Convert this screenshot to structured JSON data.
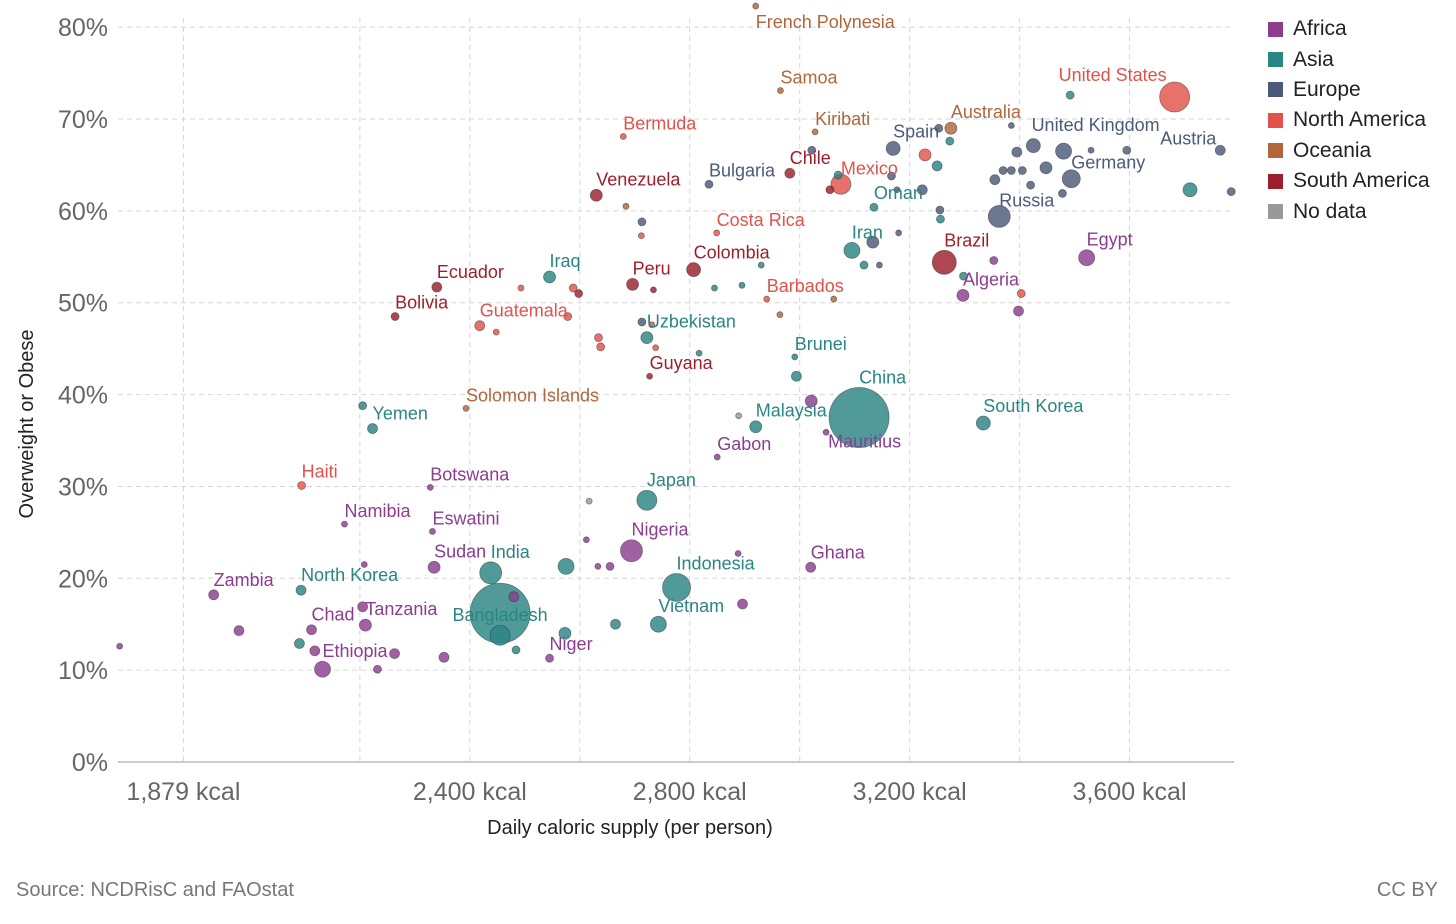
{
  "source": "Source: NCDRisC and FAOstat",
  "license": "CC BY",
  "regions": [
    {
      "key": "africa",
      "label": "Africa",
      "color": "#8c3d8f"
    },
    {
      "key": "asia",
      "label": "Asia",
      "color": "#2a8583"
    },
    {
      "key": "europe",
      "label": "Europe",
      "color": "#4c5a7a"
    },
    {
      "key": "namerica",
      "label": "North America",
      "color": "#e2524b"
    },
    {
      "key": "oceania",
      "label": "Oceania",
      "color": "#b2663a"
    },
    {
      "key": "samerica",
      "label": "South America",
      "color": "#9c1f2b"
    },
    {
      "key": "nodata",
      "label": "No data",
      "color": "#999999"
    }
  ],
  "chart_data": {
    "type": "scatter",
    "xlabel": "Daily caloric supply (per person)",
    "ylabel": "Overweight or Obese",
    "xlim": [
      1760,
      3790
    ],
    "ylim": [
      0,
      81
    ],
    "xticks": [
      1879,
      2400,
      2800,
      3200,
      3600
    ],
    "xtick_labels": [
      "1,879 kcal",
      "2,400 kcal",
      "2,800 kcal",
      "3,200 kcal",
      "3,600 kcal"
    ],
    "yticks": [
      0,
      10,
      20,
      30,
      40,
      50,
      60,
      70,
      80
    ],
    "ytick_labels": [
      "0%",
      "10%",
      "20%",
      "30%",
      "40%",
      "50%",
      "60%",
      "70%",
      "80%"
    ],
    "xgrid": [
      1879,
      2200,
      2400,
      2600,
      2800,
      3000,
      3200,
      3400,
      3600
    ],
    "grid": true,
    "legend_position": "top-right",
    "labeled_points": [
      {
        "label": "French Polynesia",
        "region": "oceania",
        "x": 2920,
        "y": 82.3,
        "r": 3
      },
      {
        "label": "Samoa",
        "region": "oceania",
        "x": 2965,
        "y": 73.1,
        "r": 3
      },
      {
        "label": "United States",
        "region": "namerica",
        "x": 3682,
        "y": 72.4,
        "r": 15
      },
      {
        "label": "Australia",
        "region": "oceania",
        "x": 3275,
        "y": 69.0,
        "r": 6
      },
      {
        "label": "Kiribati",
        "region": "oceania",
        "x": 3028,
        "y": 68.6,
        "r": 3
      },
      {
        "label": "Bermuda",
        "region": "namerica",
        "x": 2679,
        "y": 68.1,
        "r": 3
      },
      {
        "label": "United Kingdom",
        "region": "europe",
        "x": 3480,
        "y": 66.5,
        "r": 8
      },
      {
        "label": "Spain",
        "region": "europe",
        "x": 3170,
        "y": 66.8,
        "r": 7
      },
      {
        "label": "Chile",
        "region": "samerica",
        "x": 2982,
        "y": 64.1,
        "r": 5
      },
      {
        "label": "Mexico",
        "region": "namerica",
        "x": 3075,
        "y": 62.9,
        "r": 10
      },
      {
        "label": "Germany",
        "region": "europe",
        "x": 3494,
        "y": 63.5,
        "r": 9
      },
      {
        "label": "Bulgaria",
        "region": "europe",
        "x": 2835,
        "y": 62.9,
        "r": 4
      },
      {
        "label": "Venezuela",
        "region": "samerica",
        "x": 2630,
        "y": 61.7,
        "r": 6
      },
      {
        "label": "Austria",
        "region": "europe",
        "x": 3765,
        "y": 66.6,
        "r": 5
      },
      {
        "label": "Russia",
        "region": "europe",
        "x": 3363,
        "y": 59.4,
        "r": 11
      },
      {
        "label": "Oman",
        "region": "asia",
        "x": 3135,
        "y": 60.4,
        "r": 4
      },
      {
        "label": "Costa Rica",
        "region": "namerica",
        "x": 2849,
        "y": 57.6,
        "r": 3
      },
      {
        "label": "Iran",
        "region": "asia",
        "x": 3095,
        "y": 55.7,
        "r": 8
      },
      {
        "label": "Brazil",
        "region": "samerica",
        "x": 3263,
        "y": 54.4,
        "r": 12
      },
      {
        "label": "Egypt",
        "region": "africa",
        "x": 3522,
        "y": 54.9,
        "r": 8
      },
      {
        "label": "Colombia",
        "region": "samerica",
        "x": 2807,
        "y": 53.6,
        "r": 7
      },
      {
        "label": "Iraq",
        "region": "asia",
        "x": 2545,
        "y": 52.8,
        "r": 6
      },
      {
        "label": "Peru",
        "region": "samerica",
        "x": 2696,
        "y": 52.0,
        "r": 6
      },
      {
        "label": "Ecuador",
        "region": "samerica",
        "x": 2340,
        "y": 51.7,
        "r": 5
      },
      {
        "label": "Algeria",
        "region": "africa",
        "x": 3297,
        "y": 50.8,
        "r": 6
      },
      {
        "label": "Barbados",
        "region": "namerica",
        "x": 2940,
        "y": 50.4,
        "r": 3
      },
      {
        "label": "Bolivia",
        "region": "samerica",
        "x": 2264,
        "y": 48.5,
        "r": 4
      },
      {
        "label": "Guatemala",
        "region": "namerica",
        "x": 2418,
        "y": 47.5,
        "r": 5
      },
      {
        "label": "Uzbekistan",
        "region": "asia",
        "x": 2722,
        "y": 46.2,
        "r": 6
      },
      {
        "label": "Brunei",
        "region": "asia",
        "x": 2991,
        "y": 44.1,
        "r": 3
      },
      {
        "label": "Guyana",
        "region": "samerica",
        "x": 2727,
        "y": 42.0,
        "r": 3
      },
      {
        "label": "China",
        "region": "asia",
        "x": 3108,
        "y": 37.5,
        "r": 30
      },
      {
        "label": "Mauritius",
        "region": "africa",
        "x": 3048,
        "y": 35.9,
        "r": 3
      },
      {
        "label": "Solomon Islands",
        "region": "oceania",
        "x": 2393,
        "y": 38.5,
        "r": 3
      },
      {
        "label": "Yemen",
        "region": "asia",
        "x": 2223,
        "y": 36.3,
        "r": 5
      },
      {
        "label": "Malaysia",
        "region": "asia",
        "x": 2920,
        "y": 36.5,
        "r": 6
      },
      {
        "label": "South Korea",
        "region": "asia",
        "x": 3334,
        "y": 36.9,
        "r": 7
      },
      {
        "label": "Gabon",
        "region": "africa",
        "x": 2850,
        "y": 33.2,
        "r": 3
      },
      {
        "label": "Haiti",
        "region": "namerica",
        "x": 2094,
        "y": 30.1,
        "r": 4
      },
      {
        "label": "Botswana",
        "region": "africa",
        "x": 2328,
        "y": 29.9,
        "r": 3
      },
      {
        "label": "Japan",
        "region": "asia",
        "x": 2722,
        "y": 28.5,
        "r": 10
      },
      {
        "label": "Namibia",
        "region": "africa",
        "x": 2172,
        "y": 25.9,
        "r": 3
      },
      {
        "label": "Eswatini",
        "region": "africa",
        "x": 2332,
        "y": 25.1,
        "r": 3
      },
      {
        "label": "Nigeria",
        "region": "africa",
        "x": 2694,
        "y": 23.0,
        "r": 11
      },
      {
        "label": "Sudan",
        "region": "africa",
        "x": 2335,
        "y": 21.2,
        "r": 6
      },
      {
        "label": "Ghana",
        "region": "africa",
        "x": 3020,
        "y": 21.2,
        "r": 5
      },
      {
        "label": "Indonesia",
        "region": "asia",
        "x": 2776,
        "y": 19.0,
        "r": 14
      },
      {
        "label": "India",
        "region": "asia",
        "x": 2438,
        "y": 20.6,
        "r": 11
      },
      {
        "label": "Zambia",
        "region": "africa",
        "x": 1934,
        "y": 18.2,
        "r": 5
      },
      {
        "label": "North Korea",
        "region": "asia",
        "x": 2093,
        "y": 18.7,
        "r": 5
      },
      {
        "label": "Bangladesh",
        "region": "asia",
        "x": 2455,
        "y": 16.2,
        "r": 30
      },
      {
        "label": "Tanzania",
        "region": "africa",
        "x": 2210,
        "y": 14.9,
        "r": 6
      },
      {
        "label": "Vietnam",
        "region": "asia",
        "x": 2743,
        "y": 15.0,
        "r": 8
      },
      {
        "label": "Chad",
        "region": "africa",
        "x": 2112,
        "y": 14.4,
        "r": 5
      },
      {
        "label": "Niger",
        "region": "africa",
        "x": 2545,
        "y": 11.3,
        "r": 4
      },
      {
        "label": "Ethiopia",
        "region": "africa",
        "x": 2132,
        "y": 10.1,
        "r": 8
      }
    ],
    "unlabeled_points": [
      {
        "region": "africa",
        "x": 1763,
        "y": 12.6,
        "r": 3
      },
      {
        "region": "africa",
        "x": 1980,
        "y": 14.3,
        "r": 5
      },
      {
        "region": "africa",
        "x": 2118,
        "y": 12.1,
        "r": 5
      },
      {
        "region": "africa",
        "x": 2263,
        "y": 11.8,
        "r": 5
      },
      {
        "region": "africa",
        "x": 2353,
        "y": 11.4,
        "r": 5
      },
      {
        "region": "africa",
        "x": 2232,
        "y": 10.1,
        "r": 4
      },
      {
        "region": "africa",
        "x": 2205,
        "y": 16.9,
        "r": 5
      },
      {
        "region": "africa",
        "x": 2208,
        "y": 21.5,
        "r": 3
      },
      {
        "region": "asia",
        "x": 2090,
        "y": 12.9,
        "r": 5
      },
      {
        "region": "asia",
        "x": 2205,
        "y": 38.8,
        "r": 4
      },
      {
        "region": "asia",
        "x": 2575,
        "y": 21.3,
        "r": 8
      },
      {
        "region": "asia",
        "x": 2455,
        "y": 13.8,
        "r": 10
      },
      {
        "region": "asia",
        "x": 2573,
        "y": 14.0,
        "r": 6
      },
      {
        "region": "asia",
        "x": 2484,
        "y": 12.2,
        "r": 4
      },
      {
        "region": "asia",
        "x": 2665,
        "y": 15.0,
        "r": 5
      },
      {
        "region": "africa",
        "x": 2480,
        "y": 18.0,
        "r": 5
      },
      {
        "region": "africa",
        "x": 2655,
        "y": 21.3,
        "r": 4
      },
      {
        "region": "africa",
        "x": 2612,
        "y": 24.2,
        "r": 3
      },
      {
        "region": "africa",
        "x": 2633,
        "y": 21.3,
        "r": 3
      },
      {
        "region": "africa",
        "x": 2888,
        "y": 22.7,
        "r": 3
      },
      {
        "region": "africa",
        "x": 2896,
        "y": 17.2,
        "r": 5
      },
      {
        "region": "africa",
        "x": 3021,
        "y": 39.3,
        "r": 6
      },
      {
        "region": "africa",
        "x": 3398,
        "y": 49.1,
        "r": 5
      },
      {
        "region": "africa",
        "x": 3353,
        "y": 54.6,
        "r": 4
      },
      {
        "region": "nodata",
        "x": 2617,
        "y": 28.4,
        "r": 3
      },
      {
        "region": "nodata",
        "x": 2889,
        "y": 37.7,
        "r": 3
      },
      {
        "region": "asia",
        "x": 2994,
        "y": 42.0,
        "r": 5
      },
      {
        "region": "asia",
        "x": 2817,
        "y": 44.5,
        "r": 3
      },
      {
        "region": "asia",
        "x": 2845,
        "y": 51.6,
        "r": 3
      },
      {
        "region": "asia",
        "x": 2895,
        "y": 51.9,
        "r": 3
      },
      {
        "region": "asia",
        "x": 2930,
        "y": 54.1,
        "r": 3
      },
      {
        "region": "asia",
        "x": 3273,
        "y": 67.6,
        "r": 4
      },
      {
        "region": "asia",
        "x": 3250,
        "y": 64.9,
        "r": 5
      },
      {
        "region": "asia",
        "x": 3256,
        "y": 59.1,
        "r": 4
      },
      {
        "region": "asia",
        "x": 3298,
        "y": 52.9,
        "r": 4
      },
      {
        "region": "asia",
        "x": 3710,
        "y": 62.3,
        "r": 7
      },
      {
        "region": "asia",
        "x": 3492,
        "y": 72.6,
        "r": 4
      },
      {
        "region": "asia",
        "x": 3117,
        "y": 54.1,
        "r": 4
      },
      {
        "region": "asia",
        "x": 3070,
        "y": 63.9,
        "r": 4
      },
      {
        "region": "namerica",
        "x": 3228,
        "y": 66.1,
        "r": 6
      },
      {
        "region": "namerica",
        "x": 3403,
        "y": 51.0,
        "r": 4
      },
      {
        "region": "namerica",
        "x": 2578,
        "y": 48.5,
        "r": 4
      },
      {
        "region": "namerica",
        "x": 2634,
        "y": 46.2,
        "r": 4
      },
      {
        "region": "namerica",
        "x": 2638,
        "y": 45.2,
        "r": 4
      },
      {
        "region": "namerica",
        "x": 2731,
        "y": 47.6,
        "r": 3
      },
      {
        "region": "namerica",
        "x": 2588,
        "y": 51.6,
        "r": 4
      },
      {
        "region": "namerica",
        "x": 2738,
        "y": 45.1,
        "r": 3
      },
      {
        "region": "namerica",
        "x": 2712,
        "y": 57.3,
        "r": 3
      },
      {
        "region": "namerica",
        "x": 2448,
        "y": 46.8,
        "r": 3
      },
      {
        "region": "namerica",
        "x": 2493,
        "y": 51.6,
        "r": 3
      },
      {
        "region": "oceania",
        "x": 2684,
        "y": 60.5,
        "r": 3
      },
      {
        "region": "oceania",
        "x": 2964,
        "y": 48.7,
        "r": 3
      },
      {
        "region": "oceania",
        "x": 3062,
        "y": 50.4,
        "r": 3
      },
      {
        "region": "samerica",
        "x": 2598,
        "y": 51.0,
        "r": 4
      },
      {
        "region": "samerica",
        "x": 2734,
        "y": 51.4,
        "r": 3
      },
      {
        "region": "samerica",
        "x": 3055,
        "y": 62.3,
        "r": 4
      },
      {
        "region": "europe",
        "x": 2713,
        "y": 47.9,
        "r": 4
      },
      {
        "region": "europe",
        "x": 2713,
        "y": 58.8,
        "r": 4
      },
      {
        "region": "europe",
        "x": 3145,
        "y": 54.1,
        "r": 3
      },
      {
        "region": "europe",
        "x": 3133,
        "y": 56.6,
        "r": 6
      },
      {
        "region": "europe",
        "x": 3180,
        "y": 57.6,
        "r": 3
      },
      {
        "region": "europe",
        "x": 3167,
        "y": 63.8,
        "r": 4
      },
      {
        "region": "europe",
        "x": 3177,
        "y": 62.3,
        "r": 3
      },
      {
        "region": "europe",
        "x": 3223,
        "y": 62.3,
        "r": 5
      },
      {
        "region": "europe",
        "x": 3255,
        "y": 60.1,
        "r": 4
      },
      {
        "region": "europe",
        "x": 3253,
        "y": 69.0,
        "r": 4
      },
      {
        "region": "europe",
        "x": 3022,
        "y": 66.6,
        "r": 4
      },
      {
        "region": "europe",
        "x": 3355,
        "y": 63.4,
        "r": 5
      },
      {
        "region": "europe",
        "x": 3370,
        "y": 64.4,
        "r": 4
      },
      {
        "region": "europe",
        "x": 3385,
        "y": 64.4,
        "r": 4
      },
      {
        "region": "europe",
        "x": 3395,
        "y": 66.4,
        "r": 5
      },
      {
        "region": "europe",
        "x": 3405,
        "y": 64.4,
        "r": 4
      },
      {
        "region": "europe",
        "x": 3425,
        "y": 67.1,
        "r": 7
      },
      {
        "region": "europe",
        "x": 3420,
        "y": 62.8,
        "r": 4
      },
      {
        "region": "europe",
        "x": 3448,
        "y": 64.7,
        "r": 6
      },
      {
        "region": "europe",
        "x": 3478,
        "y": 61.9,
        "r": 4
      },
      {
        "region": "europe",
        "x": 3385,
        "y": 69.3,
        "r": 3
      },
      {
        "region": "europe",
        "x": 3530,
        "y": 66.6,
        "r": 3
      },
      {
        "region": "europe",
        "x": 3595,
        "y": 66.6,
        "r": 4
      },
      {
        "region": "europe",
        "x": 3785,
        "y": 62.1,
        "r": 4
      }
    ]
  }
}
